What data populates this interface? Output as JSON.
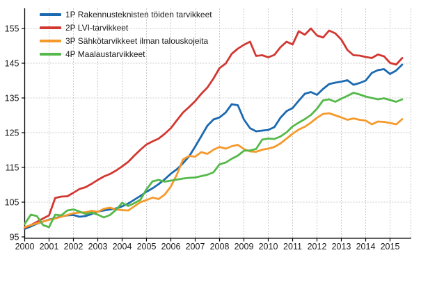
{
  "chart_data": {
    "type": "line",
    "title": "",
    "xlabel": "",
    "ylabel": "",
    "grid": "dashed",
    "legend_position": "top-left",
    "xlim": [
      2000,
      2015.87
    ],
    "ylim": [
      95,
      157.6
    ],
    "x_ticks": [
      2000,
      2001,
      2002,
      2003,
      2004,
      2005,
      2006,
      2007,
      2008,
      2009,
      2010,
      2011,
      2012,
      2013,
      2014,
      2015
    ],
    "x_tick_labels": [
      "2000",
      "2001",
      "2002",
      "2003",
      "2004",
      "2005",
      "2006",
      "2007",
      "2008",
      "2009",
      "2010",
      "2011",
      "2012",
      "2013",
      "2014",
      "2015"
    ],
    "y_ticks": [
      95,
      105,
      115,
      125,
      135,
      145,
      155
    ],
    "y_tick_labels": [
      "95",
      "105",
      "115",
      "125",
      "135",
      "145",
      "155"
    ],
    "x": [
      2000.0,
      2000.25,
      2000.5,
      2000.75,
      2001.0,
      2001.25,
      2001.5,
      2001.75,
      2002.0,
      2002.25,
      2002.5,
      2002.75,
      2003.0,
      2003.25,
      2003.5,
      2003.75,
      2004.0,
      2004.25,
      2004.5,
      2004.75,
      2005.0,
      2005.25,
      2005.5,
      2005.75,
      2006.0,
      2006.25,
      2006.5,
      2006.75,
      2007.0,
      2007.25,
      2007.5,
      2007.75,
      2008.0,
      2008.25,
      2008.5,
      2008.75,
      2009.0,
      2009.25,
      2009.5,
      2009.75,
      2010.0,
      2010.25,
      2010.5,
      2010.75,
      2011.0,
      2011.25,
      2011.5,
      2011.75,
      2012.0,
      2012.25,
      2012.5,
      2012.75,
      2013.0,
      2013.25,
      2013.5,
      2013.75,
      2014.0,
      2014.25,
      2014.5,
      2014.75,
      2015.0,
      2015.25,
      2015.5
    ],
    "series": [
      {
        "id": "1p",
        "name": "1P Rakennusteknisten töiden tarvikkeet",
        "color": "#1B69B1",
        "values": [
          97.3,
          98.0,
          98.8,
          99.4,
          100.0,
          100.4,
          100.9,
          101.2,
          101.3,
          100.8,
          101.0,
          101.6,
          102.3,
          102.6,
          102.9,
          103.2,
          103.8,
          104.6,
          105.7,
          106.8,
          108.0,
          109.0,
          110.2,
          111.6,
          113.2,
          114.5,
          116.2,
          118.2,
          121.0,
          124.0,
          127.0,
          128.8,
          129.4,
          130.8,
          133.2,
          132.9,
          128.8,
          126.3,
          125.4,
          125.6,
          125.8,
          126.6,
          129.3,
          131.2,
          132.1,
          134.2,
          136.2,
          136.7,
          135.9,
          137.6,
          139.0,
          139.4,
          139.7,
          140.1,
          138.8,
          139.3,
          140.0,
          142.2,
          143.0,
          143.3,
          141.9,
          142.9,
          144.6
        ]
      },
      {
        "id": "2p",
        "name": "2P LVI-tarvikkeet",
        "color": "#D23731",
        "values": [
          97.6,
          98.4,
          99.3,
          100.3,
          101.2,
          106.2,
          106.6,
          106.7,
          107.7,
          108.8,
          109.3,
          110.3,
          111.4,
          112.4,
          113.1,
          114.1,
          115.3,
          116.6,
          118.4,
          120.1,
          121.6,
          122.5,
          123.3,
          124.7,
          126.3,
          128.6,
          130.8,
          132.4,
          134.1,
          136.2,
          138.0,
          140.6,
          143.6,
          144.9,
          147.7,
          149.2,
          150.3,
          151.2,
          147.1,
          147.3,
          146.7,
          147.4,
          149.6,
          151.2,
          150.4,
          154.2,
          153.2,
          155.0,
          153.0,
          152.4,
          154.4,
          153.6,
          151.8,
          148.8,
          147.3,
          147.2,
          146.8,
          146.5,
          147.5,
          147.0,
          145.1,
          144.6,
          146.5
        ]
      },
      {
        "id": "3p",
        "name": "3P Sähkötarvikkeet ilman talouskojeita",
        "color": "#F5992B",
        "values": [
          97.8,
          98.4,
          98.9,
          99.4,
          99.9,
          100.3,
          100.8,
          101.3,
          101.8,
          102.0,
          102.1,
          102.5,
          102.2,
          103.1,
          103.4,
          102.9,
          102.7,
          102.6,
          103.8,
          105.0,
          105.6,
          106.3,
          105.9,
          107.2,
          109.5,
          113.0,
          117.3,
          118.3,
          118.1,
          119.4,
          118.9,
          120.1,
          120.9,
          120.4,
          121.1,
          121.5,
          120.3,
          119.6,
          119.5,
          120.1,
          120.4,
          120.9,
          121.9,
          123.3,
          124.7,
          125.9,
          126.7,
          127.9,
          129.3,
          130.4,
          130.6,
          130.0,
          129.4,
          128.7,
          129.1,
          128.7,
          128.5,
          127.4,
          128.2,
          128.1,
          127.8,
          127.4,
          128.9
        ]
      },
      {
        "id": "4p",
        "name": "4P Maalaustarvikkeet",
        "color": "#55B94A",
        "values": [
          98.7,
          101.4,
          101.0,
          98.4,
          97.8,
          101.4,
          101.2,
          102.6,
          102.9,
          102.3,
          101.6,
          102.0,
          101.4,
          100.6,
          101.3,
          102.8,
          104.8,
          103.9,
          104.7,
          105.7,
          108.7,
          111.0,
          111.4,
          110.9,
          111.2,
          111.5,
          111.8,
          112.0,
          112.1,
          112.5,
          112.9,
          113.6,
          115.9,
          116.4,
          117.5,
          118.4,
          119.8,
          119.9,
          120.3,
          123.0,
          123.3,
          123.2,
          123.9,
          125.1,
          126.8,
          127.9,
          128.9,
          130.1,
          131.9,
          134.3,
          134.6,
          133.9,
          134.8,
          135.6,
          136.5,
          136.0,
          135.4,
          135.0,
          134.6,
          134.9,
          134.4,
          133.9,
          134.6
        ]
      }
    ]
  },
  "style": {
    "grid_color": "#C9C9C9",
    "axis_color": "#000000",
    "tick_label_color": "#1a1a1a",
    "background": "#ffffff"
  }
}
